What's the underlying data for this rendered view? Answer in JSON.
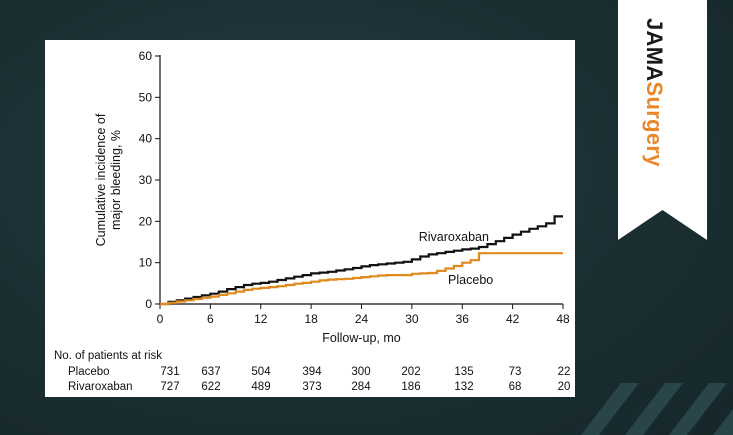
{
  "brand": {
    "part1": "JAMA",
    "part2": "Surgery",
    "accent": "#e8882a"
  },
  "chart_data": {
    "type": "line",
    "xlabel": "Follow-up, mo",
    "ylabel_lines": [
      "Cumulative incidence of",
      "major bleeding, %"
    ],
    "xlim": [
      0,
      48
    ],
    "ylim": [
      0,
      60
    ],
    "xticks": [
      0,
      6,
      12,
      18,
      24,
      30,
      36,
      42,
      48
    ],
    "yticks": [
      0,
      10,
      20,
      30,
      40,
      50,
      60
    ],
    "series": [
      {
        "name": "Rivaroxaban",
        "color": "#111111",
        "x": [
          0,
          1,
          2,
          3,
          4,
          5,
          6,
          7,
          8,
          9,
          10,
          11,
          12,
          13,
          14,
          15,
          16,
          17,
          18,
          19,
          20,
          21,
          22,
          23,
          24,
          25,
          26,
          27,
          28,
          29,
          30,
          31,
          32,
          33,
          34,
          35,
          36,
          37,
          38,
          39,
          40,
          41,
          42,
          43,
          44,
          45,
          46,
          47,
          48
        ],
        "y": [
          0,
          0.5,
          0.9,
          1.3,
          1.7,
          2.1,
          2.5,
          3.0,
          3.6,
          4.1,
          4.6,
          4.9,
          5.1,
          5.4,
          5.8,
          6.2,
          6.6,
          7.0,
          7.4,
          7.6,
          7.8,
          8.1,
          8.4,
          8.7,
          9.1,
          9.4,
          9.6,
          9.8,
          10.0,
          10.2,
          10.8,
          11.5,
          12.0,
          12.3,
          12.6,
          12.9,
          13.2,
          13.4,
          13.8,
          14.5,
          15.2,
          16.0,
          16.8,
          17.5,
          18.2,
          18.8,
          19.5,
          21.2,
          21.2
        ]
      },
      {
        "name": "Placebo",
        "color": "#e08a1e",
        "x": [
          0,
          1,
          2,
          3,
          4,
          5,
          6,
          7,
          8,
          9,
          10,
          11,
          12,
          13,
          14,
          15,
          16,
          17,
          18,
          19,
          20,
          21,
          22,
          23,
          24,
          25,
          26,
          27,
          28,
          29,
          30,
          31,
          32,
          33,
          34,
          35,
          36,
          37,
          38,
          39,
          40,
          41,
          42,
          43,
          44,
          45,
          46,
          47,
          48
        ],
        "y": [
          0,
          0.3,
          0.6,
          0.9,
          1.2,
          1.5,
          1.8,
          2.2,
          2.6,
          3.0,
          3.4,
          3.7,
          3.9,
          4.1,
          4.3,
          4.6,
          4.9,
          5.1,
          5.4,
          5.7,
          5.9,
          6.0,
          6.1,
          6.3,
          6.5,
          6.7,
          6.9,
          7.0,
          7.0,
          7.0,
          7.3,
          7.4,
          7.5,
          8.0,
          8.6,
          9.2,
          10.0,
          10.6,
          12.3,
          12.3,
          12.3,
          12.3,
          12.3,
          12.3,
          12.3,
          12.3,
          12.3,
          12.3,
          12.3
        ]
      }
    ],
    "annotations": [
      {
        "text": "Rivaroxaban",
        "x": 35,
        "y": 15.2
      },
      {
        "text": "Placebo",
        "x": 37,
        "y": 4.8
      }
    ],
    "risk_table": {
      "title": "No. of patients at risk",
      "rows": [
        {
          "label": "Placebo",
          "values": [
            "731",
            "637",
            "504",
            "394",
            "300",
            "202",
            "135",
            "73",
            "22"
          ]
        },
        {
          "label": "Rivaroxaban",
          "values": [
            "727",
            "622",
            "489",
            "373",
            "284",
            "186",
            "132",
            "68",
            "20"
          ]
        }
      ]
    }
  }
}
